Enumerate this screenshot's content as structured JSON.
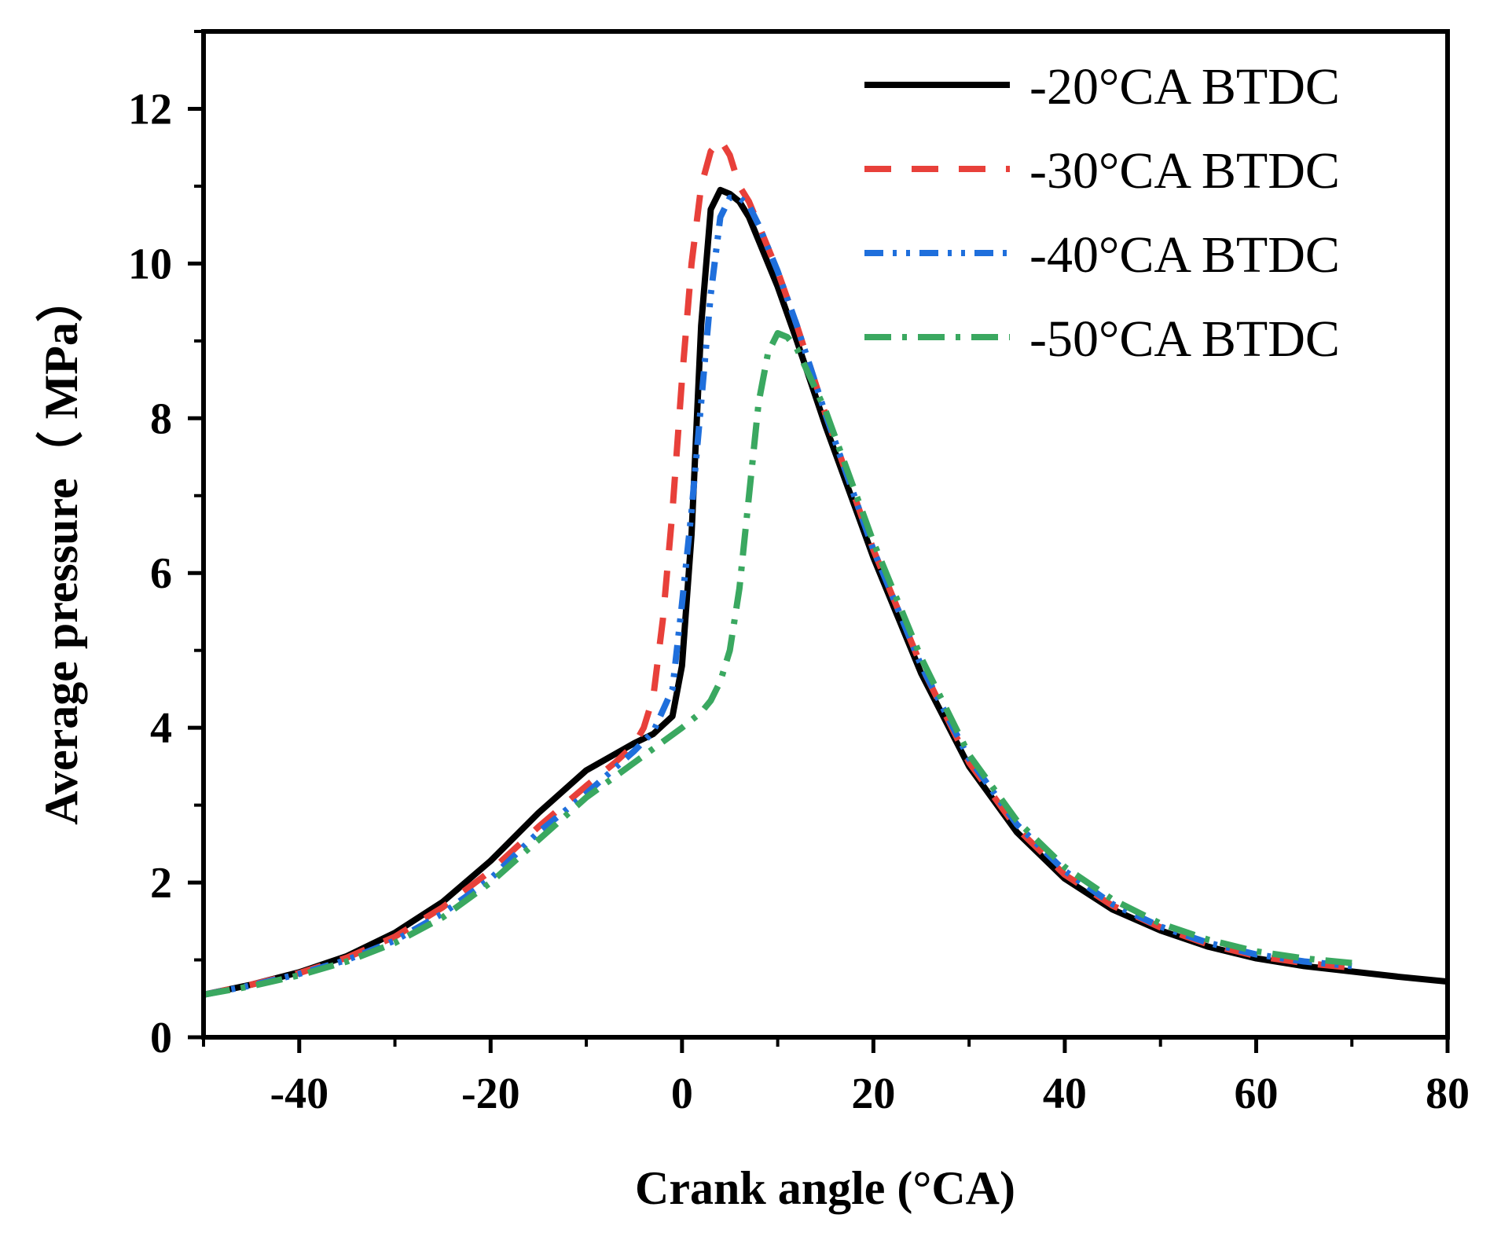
{
  "chart_data": {
    "type": "line",
    "title": "",
    "xlabel": "Crank angle (°CA)",
    "ylabel": "Average pressure（ MPa）",
    "xlim": [
      -50,
      80
    ],
    "ylim": [
      0,
      13
    ],
    "xticks": [
      -40,
      -20,
      0,
      20,
      40,
      60,
      80
    ],
    "yticks": [
      0,
      2,
      4,
      6,
      8,
      10,
      12
    ],
    "xtick_labels": [
      "-40",
      "-20",
      "0",
      "20",
      "40",
      "60",
      "80"
    ],
    "ytick_labels": [
      "0",
      "2",
      "4",
      "6",
      "8",
      "10",
      "12"
    ],
    "legend_position": "top-right",
    "grid": false,
    "series": [
      {
        "name": "-20°CA BTDC",
        "color": "#000000",
        "style": "solid",
        "x": [
          -50,
          -45,
          -40,
          -35,
          -30,
          -25,
          -20,
          -15,
          -10,
          -5,
          -3,
          -1,
          0,
          1,
          2,
          3,
          4,
          5,
          6,
          7,
          8,
          10,
          12,
          15,
          20,
          25,
          30,
          35,
          40,
          45,
          50,
          55,
          60,
          65,
          70,
          75,
          80
        ],
        "y": [
          0.55,
          0.68,
          0.84,
          1.05,
          1.35,
          1.75,
          2.28,
          2.9,
          3.45,
          3.8,
          3.92,
          4.15,
          4.8,
          6.5,
          9.2,
          10.7,
          10.95,
          10.9,
          10.8,
          10.6,
          10.3,
          9.7,
          9.0,
          7.9,
          6.2,
          4.7,
          3.5,
          2.65,
          2.05,
          1.65,
          1.38,
          1.17,
          1.02,
          0.92,
          0.85,
          0.78,
          0.72
        ]
      },
      {
        "name": "-30°CA BTDC",
        "color": "#e8403a",
        "style": "dashed",
        "x": [
          -50,
          -45,
          -40,
          -35,
          -30,
          -25,
          -20,
          -15,
          -10,
          -7,
          -5,
          -4,
          -3,
          -2,
          -1,
          0,
          1,
          2,
          3,
          4,
          5,
          6,
          7,
          8,
          10,
          12,
          15,
          20,
          25,
          30,
          35,
          40,
          45,
          50,
          55,
          60,
          65,
          70
        ],
        "y": [
          0.55,
          0.68,
          0.83,
          1.03,
          1.3,
          1.68,
          2.15,
          2.72,
          3.25,
          3.55,
          3.78,
          4.0,
          4.4,
          5.4,
          6.8,
          8.5,
          10.0,
          11.0,
          11.45,
          11.6,
          11.4,
          11.0,
          10.8,
          10.5,
          9.9,
          9.2,
          8.05,
          6.3,
          4.8,
          3.55,
          2.7,
          2.1,
          1.7,
          1.42,
          1.2,
          1.05,
          0.96,
          0.9
        ]
      },
      {
        "name": "-40°CA BTDC",
        "color": "#1f6fdc",
        "style": "dash-dot-dot",
        "x": [
          -50,
          -45,
          -40,
          -35,
          -30,
          -25,
          -20,
          -15,
          -10,
          -5,
          -3,
          -1,
          0,
          1,
          2,
          3,
          4,
          5,
          6,
          7,
          8,
          10,
          12,
          15,
          20,
          25,
          30,
          35,
          40,
          45,
          50,
          55,
          60,
          65,
          70
        ],
        "y": [
          0.55,
          0.67,
          0.82,
          1.0,
          1.25,
          1.6,
          2.05,
          2.65,
          3.15,
          3.7,
          3.95,
          4.5,
          5.6,
          6.8,
          8.2,
          9.6,
          10.6,
          10.85,
          10.85,
          10.75,
          10.5,
          9.9,
          9.2,
          8.05,
          6.3,
          4.8,
          3.6,
          2.75,
          2.15,
          1.72,
          1.43,
          1.22,
          1.07,
          0.98,
          0.92
        ]
      },
      {
        "name": "-50°CA BTDC",
        "color": "#3aa860",
        "style": "dash-dot",
        "x": [
          -50,
          -45,
          -40,
          -35,
          -30,
          -25,
          -20,
          -15,
          -10,
          -5,
          -2,
          0,
          2,
          3,
          4,
          5,
          6,
          7,
          8,
          9,
          10,
          11,
          12,
          15,
          20,
          25,
          30,
          35,
          40,
          45,
          50,
          55,
          60,
          65,
          70
        ],
        "y": [
          0.55,
          0.66,
          0.8,
          0.98,
          1.22,
          1.55,
          2.0,
          2.55,
          3.1,
          3.55,
          3.82,
          4.0,
          4.2,
          4.35,
          4.6,
          5.0,
          5.8,
          7.0,
          8.2,
          8.85,
          9.1,
          9.05,
          8.9,
          8.1,
          6.4,
          4.9,
          3.65,
          2.8,
          2.2,
          1.78,
          1.47,
          1.26,
          1.11,
          1.02,
          0.96
        ]
      }
    ]
  }
}
